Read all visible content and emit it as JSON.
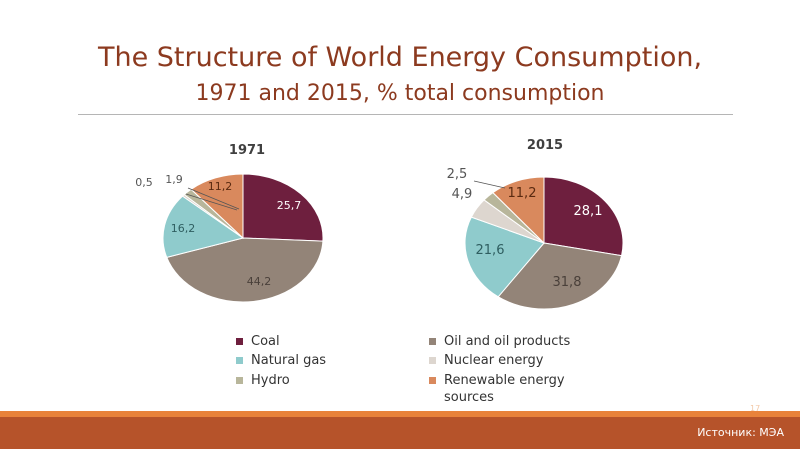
{
  "title_line1": "The Structure of World Energy Consumption,",
  "title_line2": "1971 and 2015, % total consumption",
  "source": "Источник: МЭА",
  "page_number": "17",
  "chart_data": [
    {
      "type": "pie",
      "title": "1971",
      "labels": [
        "Coal",
        "Oil and oil products",
        "Natural gas",
        "Nuclear energy",
        "Hydro",
        "Renewable energy sources"
      ],
      "values": [
        25.7,
        44.2,
        16.2,
        0.5,
        1.9,
        11.2
      ],
      "value_labels": [
        "25,7",
        "44,2",
        "16,2",
        "0,5",
        "1,9",
        "11,2"
      ],
      "colors": [
        "#6e1f3e",
        "#938478",
        "#8fcbcc",
        "#ddd6cf",
        "#b8b69b",
        "#d9895d"
      ]
    },
    {
      "type": "pie",
      "title": "2015",
      "labels": [
        "Coal",
        "Oil and oil products",
        "Natural gas",
        "Nuclear energy",
        "Hydro",
        "Renewable energy sources"
      ],
      "values": [
        28.1,
        31.8,
        21.6,
        4.9,
        2.5,
        11.2
      ],
      "value_labels": [
        "28,1",
        "31,8",
        "21,6",
        "4,9",
        "2,5",
        "11,2"
      ],
      "colors": [
        "#6e1f3e",
        "#938478",
        "#8fcbcc",
        "#ddd6cf",
        "#b8b69b",
        "#d9895d"
      ]
    }
  ],
  "legend": [
    {
      "label": "Coal",
      "color": "#6e1f3e"
    },
    {
      "label": "Oil and oil products",
      "color": "#938478"
    },
    {
      "label": "Natural gas",
      "color": "#8fcbcc"
    },
    {
      "label": "Nuclear energy",
      "color": "#ddd6cf"
    },
    {
      "label": "Hydro",
      "color": "#b8b69b"
    },
    {
      "label": "Renewable energy sources",
      "color": "#d9895d"
    }
  ]
}
